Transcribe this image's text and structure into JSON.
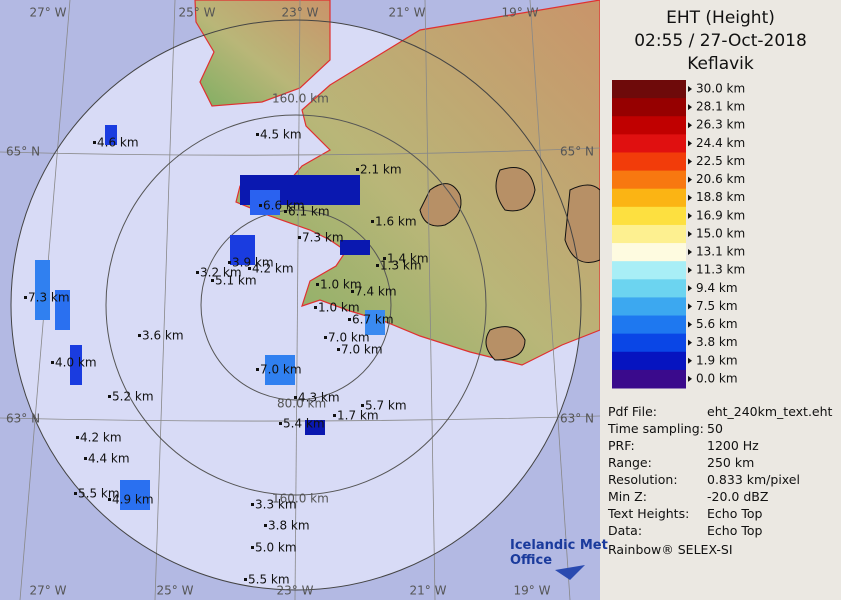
{
  "header": {
    "title": "EHT (Height)",
    "time": "02:55 / 27-Oct-2018",
    "site": "Keflavik"
  },
  "scale": [
    {
      "label": "30.0 km",
      "color": "#6e0a0a"
    },
    {
      "label": "28.1 km",
      "color": "#960000"
    },
    {
      "label": "26.3 km",
      "color": "#c00000"
    },
    {
      "label": "24.4 km",
      "color": "#e01010"
    },
    {
      "label": "22.5 km",
      "color": "#f23c0a"
    },
    {
      "label": "20.6 km",
      "color": "#f87810"
    },
    {
      "label": "18.8 km",
      "color": "#fbb414"
    },
    {
      "label": "16.9 km",
      "color": "#fde040"
    },
    {
      "label": "15.0 km",
      "color": "#fdf090"
    },
    {
      "label": "13.1 km",
      "color": "#fefbe0"
    },
    {
      "label": "11.3 km",
      "color": "#a8eef6"
    },
    {
      "label": "9.4 km",
      "color": "#6cd4f0"
    },
    {
      "label": "7.5 km",
      "color": "#3ca8f0"
    },
    {
      "label": "5.6 km",
      "color": "#1e78f0"
    },
    {
      "label": "3.8 km",
      "color": "#0a46e6"
    },
    {
      "label": "1.9 km",
      "color": "#0614c0"
    },
    {
      "label": "0.0 km",
      "color": "#3a0a8c"
    }
  ],
  "info": [
    [
      "Pdf File:",
      "eht_240km_text.eht"
    ],
    [
      "Time sampling:",
      "50"
    ],
    [
      "PRF:",
      "1200 Hz"
    ],
    [
      "Range:",
      "250 km"
    ],
    [
      "Resolution:",
      "0.833 km/pixel"
    ],
    [
      "Min Z:",
      "-20.0 dBZ"
    ],
    [
      "Text Heights:",
      "Echo Top"
    ],
    [
      "Data:",
      "Echo Top"
    ]
  ],
  "footer": "Rainbow® SELEX-SI",
  "logo": [
    "Icelandic Met",
    "Office"
  ],
  "map": {
    "lon_top": [
      "27° W",
      "25° W",
      "23° W",
      "21° W",
      "19° W"
    ],
    "lon_bottom": [
      "27° W",
      "25° W",
      "23° W",
      "21° W",
      "19° W"
    ],
    "lat_left": [
      "65° N",
      "63° N"
    ],
    "lat_right": [
      "65° N",
      "63° N"
    ],
    "rings": [
      "80.0 km",
      "160.0 km",
      "160.0 km"
    ],
    "echo_labels": [
      "4.6 km",
      "4.5 km",
      "2.1 km",
      "6.6 km",
      "6.1 km",
      "1.6 km",
      "7.3 km",
      "3.2 km",
      "3.9 km",
      "4.2 km",
      "5.1 km",
      "1.4 km",
      "1.3 km",
      "7.3 km",
      "1.0 km",
      "7.4 km",
      "1.0 km",
      "6.7 km",
      "7.0 km",
      "7.0 km",
      "3.6 km",
      "4.0 km",
      "7.0 km",
      "5.2 km",
      "4.3 km",
      "5.7 km",
      "1.7 km",
      "5.4 km",
      "4.2 km",
      "4.4 km",
      "5.5 km",
      "4.9 km",
      "3.3 km",
      "3.8 km",
      "5.0 km",
      "5.5 km"
    ]
  }
}
